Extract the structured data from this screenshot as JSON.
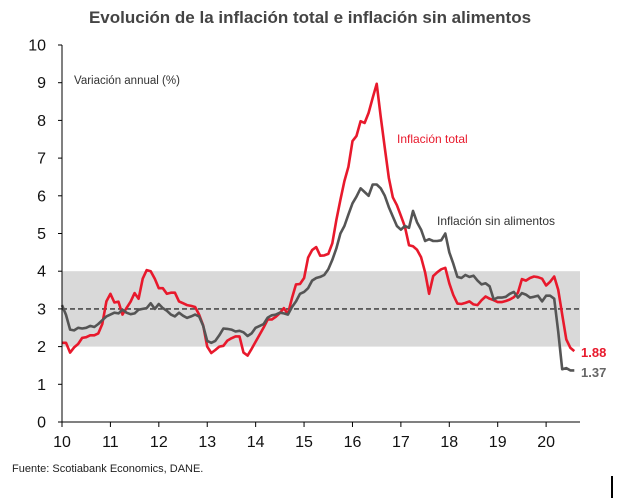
{
  "chart_data": {
    "type": "line",
    "title": "Evolución de la inflación total e inflación sin alimentos",
    "ylabel": "Variación annual (%)",
    "xlabel": "",
    "ylim": [
      0,
      10
    ],
    "yticks": [
      0,
      1,
      2,
      3,
      4,
      5,
      6,
      7,
      8,
      9,
      10
    ],
    "xlim": [
      10,
      20.7
    ],
    "xticks": [
      10,
      11,
      12,
      13,
      14,
      15,
      16,
      17,
      18,
      19,
      20
    ],
    "target_band": [
      2,
      4
    ],
    "target_line": 3,
    "series": [
      {
        "name": "Inflación total",
        "color": "#e8192c",
        "end_label": "1.88",
        "points": [
          [
            10.0,
            2.1
          ],
          [
            10.083,
            2.1
          ],
          [
            10.167,
            1.84
          ],
          [
            10.25,
            1.98
          ],
          [
            10.333,
            2.07
          ],
          [
            10.417,
            2.23
          ],
          [
            10.5,
            2.25
          ],
          [
            10.583,
            2.3
          ],
          [
            10.667,
            2.3
          ],
          [
            10.75,
            2.35
          ],
          [
            10.833,
            2.6
          ],
          [
            10.917,
            3.2
          ],
          [
            11.0,
            3.4
          ],
          [
            11.083,
            3.17
          ],
          [
            11.167,
            3.19
          ],
          [
            11.25,
            2.85
          ],
          [
            11.333,
            3.02
          ],
          [
            11.417,
            3.19
          ],
          [
            11.5,
            3.42
          ],
          [
            11.583,
            3.27
          ],
          [
            11.667,
            3.8
          ],
          [
            11.75,
            4.03
          ],
          [
            11.833,
            4.0
          ],
          [
            11.917,
            3.8
          ],
          [
            12.0,
            3.55
          ],
          [
            12.083,
            3.55
          ],
          [
            12.167,
            3.4
          ],
          [
            12.25,
            3.43
          ],
          [
            12.333,
            3.43
          ],
          [
            12.417,
            3.2
          ],
          [
            12.5,
            3.15
          ],
          [
            12.583,
            3.1
          ],
          [
            12.667,
            3.08
          ],
          [
            12.75,
            3.05
          ],
          [
            12.833,
            2.85
          ],
          [
            12.917,
            2.56
          ],
          [
            13.0,
            2.0
          ],
          [
            13.083,
            1.83
          ],
          [
            13.167,
            1.91
          ],
          [
            13.25,
            2.0
          ],
          [
            13.333,
            2.02
          ],
          [
            13.417,
            2.16
          ],
          [
            13.5,
            2.22
          ],
          [
            13.583,
            2.27
          ],
          [
            13.667,
            2.27
          ],
          [
            13.75,
            1.84
          ],
          [
            13.833,
            1.76
          ],
          [
            13.917,
            1.94
          ],
          [
            14.0,
            2.13
          ],
          [
            14.083,
            2.32
          ],
          [
            14.167,
            2.51
          ],
          [
            14.25,
            2.72
          ],
          [
            14.333,
            2.72
          ],
          [
            14.417,
            2.79
          ],
          [
            14.5,
            2.89
          ],
          [
            14.583,
            3.02
          ],
          [
            14.667,
            2.86
          ],
          [
            14.75,
            3.29
          ],
          [
            14.833,
            3.65
          ],
          [
            14.917,
            3.66
          ],
          [
            15.0,
            3.82
          ],
          [
            15.083,
            4.36
          ],
          [
            15.167,
            4.56
          ],
          [
            15.25,
            4.64
          ],
          [
            15.333,
            4.41
          ],
          [
            15.417,
            4.42
          ],
          [
            15.5,
            4.46
          ],
          [
            15.583,
            4.74
          ],
          [
            15.667,
            5.35
          ],
          [
            15.75,
            5.89
          ],
          [
            15.833,
            6.39
          ],
          [
            15.917,
            6.77
          ],
          [
            16.0,
            7.45
          ],
          [
            16.083,
            7.59
          ],
          [
            16.167,
            7.98
          ],
          [
            16.25,
            7.93
          ],
          [
            16.333,
            8.2
          ],
          [
            16.417,
            8.6
          ],
          [
            16.5,
            8.97
          ],
          [
            16.583,
            8.1
          ],
          [
            16.667,
            7.27
          ],
          [
            16.75,
            6.48
          ],
          [
            16.833,
            5.96
          ],
          [
            16.917,
            5.75
          ],
          [
            17.0,
            5.47
          ],
          [
            17.083,
            5.18
          ],
          [
            17.167,
            4.69
          ],
          [
            17.25,
            4.66
          ],
          [
            17.333,
            4.57
          ],
          [
            17.417,
            4.37
          ],
          [
            17.5,
            3.97
          ],
          [
            17.583,
            3.4
          ],
          [
            17.667,
            3.87
          ],
          [
            17.75,
            3.97
          ],
          [
            17.833,
            4.05
          ],
          [
            17.917,
            4.09
          ],
          [
            18.0,
            3.68
          ],
          [
            18.083,
            3.37
          ],
          [
            18.167,
            3.14
          ],
          [
            18.25,
            3.13
          ],
          [
            18.333,
            3.16
          ],
          [
            18.417,
            3.2
          ],
          [
            18.5,
            3.12
          ],
          [
            18.583,
            3.1
          ],
          [
            18.667,
            3.23
          ],
          [
            18.75,
            3.33
          ],
          [
            18.833,
            3.27
          ],
          [
            18.917,
            3.23
          ],
          [
            19.0,
            3.18
          ],
          [
            19.083,
            3.18
          ],
          [
            19.167,
            3.21
          ],
          [
            19.25,
            3.25
          ],
          [
            19.333,
            3.31
          ],
          [
            19.417,
            3.43
          ],
          [
            19.5,
            3.79
          ],
          [
            19.583,
            3.75
          ],
          [
            19.667,
            3.82
          ],
          [
            19.75,
            3.86
          ],
          [
            19.833,
            3.84
          ],
          [
            19.917,
            3.8
          ],
          [
            20.0,
            3.62
          ],
          [
            20.083,
            3.72
          ],
          [
            20.167,
            3.86
          ],
          [
            20.25,
            3.51
          ],
          [
            20.333,
            2.85
          ],
          [
            20.417,
            2.19
          ],
          [
            20.5,
            1.97
          ],
          [
            20.583,
            1.88
          ]
        ]
      },
      {
        "name": "Inflación sin alimentos",
        "color": "#555555",
        "end_label": "1.37",
        "points": [
          [
            10.0,
            3.1
          ],
          [
            10.083,
            2.84
          ],
          [
            10.167,
            2.45
          ],
          [
            10.25,
            2.43
          ],
          [
            10.333,
            2.5
          ],
          [
            10.417,
            2.48
          ],
          [
            10.5,
            2.5
          ],
          [
            10.583,
            2.55
          ],
          [
            10.667,
            2.52
          ],
          [
            10.75,
            2.6
          ],
          [
            10.833,
            2.7
          ],
          [
            10.917,
            2.8
          ],
          [
            11.0,
            2.85
          ],
          [
            11.083,
            2.9
          ],
          [
            11.167,
            2.88
          ],
          [
            11.25,
            2.98
          ],
          [
            11.333,
            2.9
          ],
          [
            11.417,
            2.86
          ],
          [
            11.5,
            2.88
          ],
          [
            11.583,
            2.98
          ],
          [
            11.667,
            3.0
          ],
          [
            11.75,
            3.02
          ],
          [
            11.833,
            3.15
          ],
          [
            11.917,
            3.0
          ],
          [
            12.0,
            3.13
          ],
          [
            12.083,
            3.02
          ],
          [
            12.167,
            2.95
          ],
          [
            12.25,
            2.85
          ],
          [
            12.333,
            2.8
          ],
          [
            12.417,
            2.9
          ],
          [
            12.5,
            2.82
          ],
          [
            12.583,
            2.76
          ],
          [
            12.667,
            2.8
          ],
          [
            12.75,
            2.85
          ],
          [
            12.833,
            2.8
          ],
          [
            12.917,
            2.55
          ],
          [
            13.0,
            2.15
          ],
          [
            13.083,
            2.1
          ],
          [
            13.167,
            2.15
          ],
          [
            13.25,
            2.3
          ],
          [
            13.333,
            2.48
          ],
          [
            13.417,
            2.47
          ],
          [
            13.5,
            2.45
          ],
          [
            13.583,
            2.4
          ],
          [
            13.667,
            2.42
          ],
          [
            13.75,
            2.38
          ],
          [
            13.833,
            2.28
          ],
          [
            13.917,
            2.35
          ],
          [
            14.0,
            2.5
          ],
          [
            14.083,
            2.55
          ],
          [
            14.167,
            2.6
          ],
          [
            14.25,
            2.77
          ],
          [
            14.333,
            2.83
          ],
          [
            14.417,
            2.85
          ],
          [
            14.5,
            2.9
          ],
          [
            14.583,
            2.88
          ],
          [
            14.667,
            2.85
          ],
          [
            14.75,
            3.05
          ],
          [
            14.833,
            3.2
          ],
          [
            14.917,
            3.4
          ],
          [
            15.0,
            3.45
          ],
          [
            15.083,
            3.55
          ],
          [
            15.167,
            3.75
          ],
          [
            15.25,
            3.82
          ],
          [
            15.333,
            3.85
          ],
          [
            15.417,
            3.9
          ],
          [
            15.5,
            4.05
          ],
          [
            15.583,
            4.3
          ],
          [
            15.667,
            4.6
          ],
          [
            15.75,
            5.0
          ],
          [
            15.833,
            5.2
          ],
          [
            15.917,
            5.5
          ],
          [
            16.0,
            5.8
          ],
          [
            16.083,
            5.98
          ],
          [
            16.167,
            6.2
          ],
          [
            16.25,
            6.1
          ],
          [
            16.333,
            6.0
          ],
          [
            16.417,
            6.3
          ],
          [
            16.5,
            6.3
          ],
          [
            16.583,
            6.2
          ],
          [
            16.667,
            6.0
          ],
          [
            16.75,
            5.7
          ],
          [
            16.833,
            5.45
          ],
          [
            16.917,
            5.2
          ],
          [
            17.0,
            5.1
          ],
          [
            17.083,
            5.2
          ],
          [
            17.167,
            5.15
          ],
          [
            17.25,
            5.6
          ],
          [
            17.333,
            5.3
          ],
          [
            17.417,
            5.1
          ],
          [
            17.5,
            4.8
          ],
          [
            17.583,
            4.85
          ],
          [
            17.667,
            4.8
          ],
          [
            17.75,
            4.8
          ],
          [
            17.833,
            4.82
          ],
          [
            17.917,
            5.0
          ],
          [
            18.0,
            4.5
          ],
          [
            18.083,
            4.2
          ],
          [
            18.167,
            3.85
          ],
          [
            18.25,
            3.82
          ],
          [
            18.333,
            3.9
          ],
          [
            18.417,
            3.85
          ],
          [
            18.5,
            3.88
          ],
          [
            18.583,
            3.75
          ],
          [
            18.667,
            3.65
          ],
          [
            18.75,
            3.68
          ],
          [
            18.833,
            3.6
          ],
          [
            18.917,
            3.25
          ],
          [
            19.0,
            3.3
          ],
          [
            19.083,
            3.3
          ],
          [
            19.167,
            3.32
          ],
          [
            19.25,
            3.4
          ],
          [
            19.333,
            3.45
          ],
          [
            19.417,
            3.3
          ],
          [
            19.5,
            3.42
          ],
          [
            19.583,
            3.38
          ],
          [
            19.667,
            3.3
          ],
          [
            19.75,
            3.32
          ],
          [
            19.833,
            3.35
          ],
          [
            19.917,
            3.2
          ],
          [
            20.0,
            3.35
          ],
          [
            20.083,
            3.35
          ],
          [
            20.167,
            3.27
          ],
          [
            20.25,
            2.4
          ],
          [
            20.333,
            1.4
          ],
          [
            20.417,
            1.43
          ],
          [
            20.5,
            1.37
          ],
          [
            20.583,
            1.37
          ]
        ]
      }
    ],
    "annotations": [
      "Inflación total",
      "Inflación sin alimentos"
    ]
  },
  "footer": {
    "source": "Fuente: Scotiabank Economics, DANE."
  }
}
